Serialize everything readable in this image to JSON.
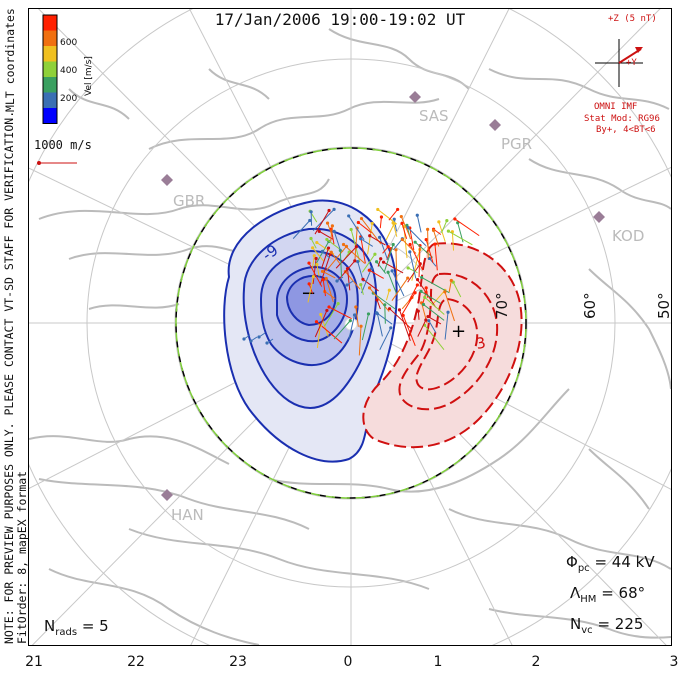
{
  "title": "17/Jan/2006 19:00-19:02 UT",
  "side_note_line1": "NOTE: FOR PREVIEW PURPOSES ONLY. PLEASE CONTACT VT-SD STAFF FOR VERIFICATION.",
  "side_note_line2": "FitOrder: 8, mapEX format",
  "mlt_coordinates_label": "MLT coordinates",
  "colorbar": {
    "label": "Vel [m/s]",
    "ticks": [
      "600",
      "400",
      "200"
    ],
    "colors": [
      "#0000ff",
      "#3a6fb4",
      "#3aa060",
      "#8fd13a",
      "#f0c020",
      "#f07010",
      "#ff2000"
    ]
  },
  "velocity_scale": "1000 m/s",
  "imf": {
    "z_label": "+Z (5 nT)",
    "y_label": "+Y",
    "source": "OMNI IMF",
    "stat_mod": "Stat Mod: RG96",
    "condition": "By+, 4<BT<6"
  },
  "stations": [
    "SAS",
    "PGR",
    "GBR",
    "KOD",
    "HAN"
  ],
  "latitude_labels": [
    "70°",
    "60°",
    "50°"
  ],
  "potential_markers": {
    "min": "−",
    "max": "+"
  },
  "contour_labels": [
    "-9",
    "3"
  ],
  "stats": {
    "phi_symbol": "Φ",
    "phi_sub": "pc",
    "phi_value": "= 44 kV",
    "lambda_symbol": "Λ",
    "lambda_sub": "HM",
    "lambda_value": "= 68°",
    "n_symbol": "N",
    "n_sub": "vc",
    "n_value": "= 225",
    "nrads_symbol": "N",
    "nrads_sub": "rads",
    "nrads_value": "= 5"
  },
  "mlt_ticks": [
    "21",
    "22",
    "23",
    "0",
    "1",
    "2",
    "3"
  ]
}
